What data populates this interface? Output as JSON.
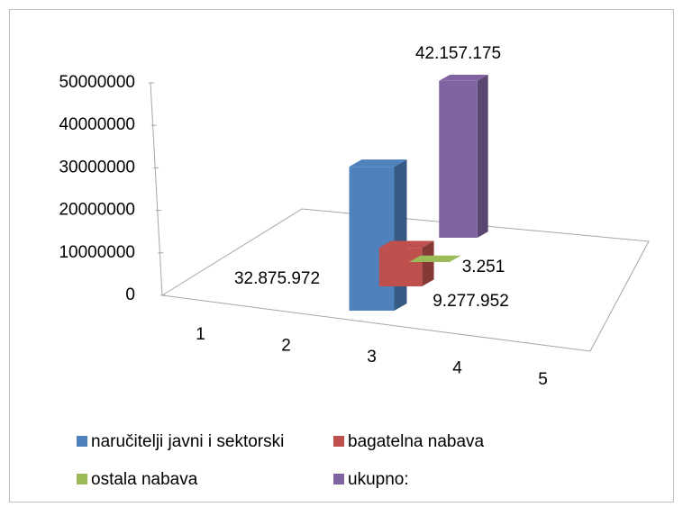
{
  "chart_data": {
    "type": "bar3d",
    "categories": [
      "1",
      "2",
      "3",
      "4",
      "5"
    ],
    "series": [
      {
        "name": "naručitelji javni i sektorski",
        "color": "#4f81bd",
        "values": [
          null,
          null,
          32875972,
          null,
          null
        ],
        "value_labels": [
          null,
          null,
          "32.875.972",
          null,
          null
        ]
      },
      {
        "name": "bagatelna nabava",
        "color": "#c0504d",
        "values": [
          null,
          null,
          9277952,
          null,
          null
        ],
        "value_labels": [
          null,
          null,
          "9.277.952",
          null,
          null
        ]
      },
      {
        "name": "ostala nabava",
        "color": "#9bbb59",
        "values": [
          null,
          null,
          3251,
          null,
          null
        ],
        "value_labels": [
          null,
          null,
          "3.251",
          null,
          null
        ]
      },
      {
        "name": "ukupno:",
        "color": "#8064a2",
        "values": [
          null,
          null,
          42157175,
          null,
          null
        ],
        "value_labels": [
          null,
          null,
          "42.157.175",
          null,
          null
        ]
      }
    ],
    "ylim": [
      0,
      50000000
    ],
    "yticks": [
      0,
      10000000,
      20000000,
      30000000,
      40000000,
      50000000
    ],
    "legend": "bottom"
  }
}
